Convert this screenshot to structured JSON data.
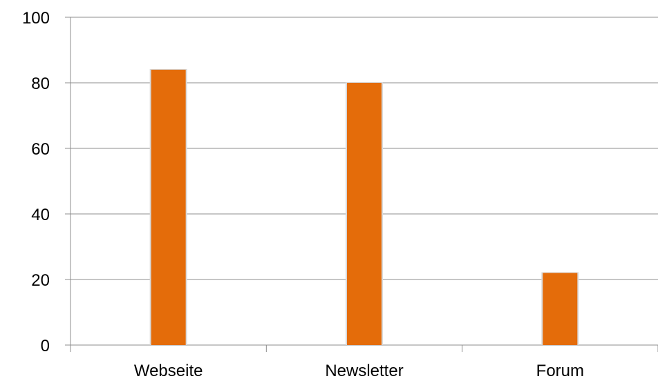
{
  "chart_data": {
    "type": "bar",
    "categories": [
      "Webseite",
      "Newsletter",
      "Forum"
    ],
    "series": [
      {
        "values": [
          84,
          80,
          22
        ],
        "color": "#E46C0A"
      }
    ],
    "title": "",
    "xlabel": "",
    "ylabel": "",
    "ylim": [
      0,
      100
    ],
    "yticks": [
      0,
      20,
      40,
      60,
      80,
      100
    ],
    "grid": true,
    "legend": "none"
  }
}
